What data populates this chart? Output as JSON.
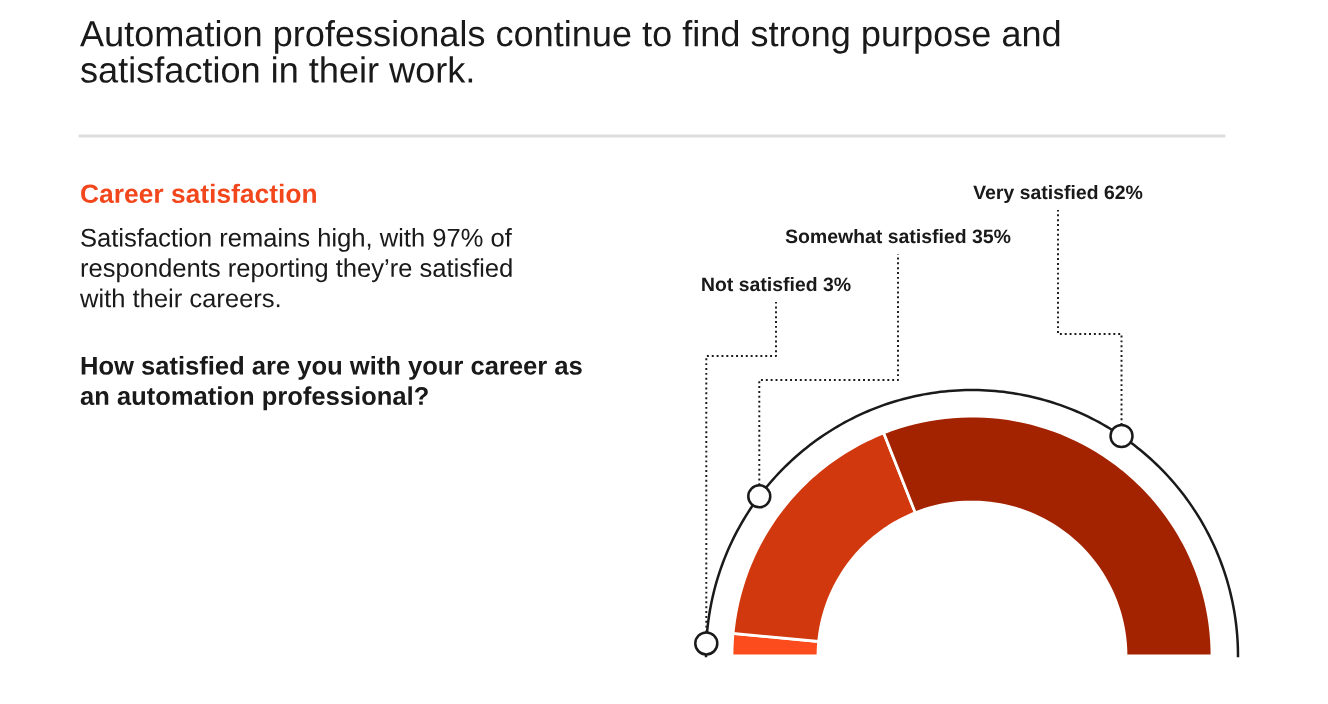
{
  "chart_data": {
    "type": "donut",
    "title": "Automation professionals continue to find strong purpose and\nsatisfaction in their work.",
    "subtitle": "Career satisfaction",
    "annotations": [
      "Satisfaction remains high, with 97% of\nrespondents reporting they’re satisfied\nwith their careers.",
      "How satisfied are you with your career as\nan automation professional?"
    ],
    "categories": [
      "Not satisfied",
      "Somewhat satisfied",
      "Very satisfied"
    ],
    "values": [
      3,
      35,
      62
    ],
    "value_labels": [
      "3%",
      "35%",
      "62%"
    ],
    "colors": [
      "#fc4c1d",
      "#d1380d",
      "#a32300"
    ],
    "legend": false
  }
}
